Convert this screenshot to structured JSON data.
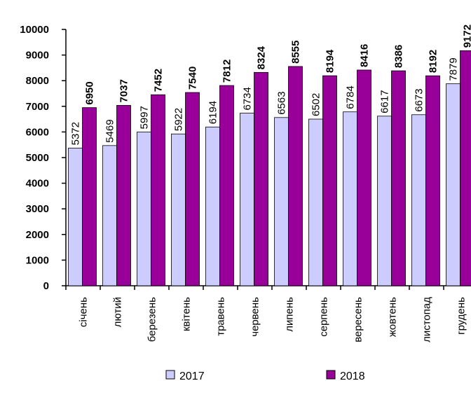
{
  "chart_data": {
    "type": "bar",
    "categories": [
      "січень",
      "лютий",
      "березень",
      "квітень",
      "травень",
      "червень",
      "липень",
      "серпень",
      "вересень",
      "жовтень",
      "листопад",
      "грудень"
    ],
    "series": [
      {
        "name": "2017",
        "values": [
          5372,
          5469,
          5997,
          5922,
          6194,
          6734,
          6563,
          6502,
          6784,
          6617,
          6673,
          7879
        ],
        "color": "#ccccff"
      },
      {
        "name": "2018",
        "values": [
          6950,
          7037,
          7452,
          7540,
          7812,
          8324,
          8555,
          8194,
          8416,
          8386,
          8192,
          9172
        ],
        "color": "#990099"
      }
    ],
    "yticks": [
      "0",
      "1000",
      "2000",
      "3000",
      "4000",
      "5000",
      "6000",
      "7000",
      "8000",
      "9000",
      "10000"
    ],
    "ylim": [
      0,
      10000
    ],
    "grid": false,
    "legend": "bottom"
  }
}
